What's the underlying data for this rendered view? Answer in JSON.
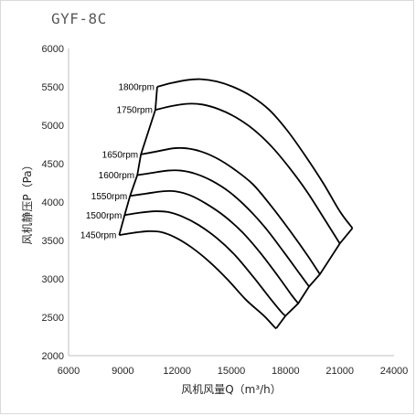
{
  "chart_data": {
    "type": "line",
    "title": "GYF-8C",
    "xlabel": "风机风量Q（m³/h）",
    "ylabel": "风机静压P（Pa）",
    "xlim": [
      6000,
      24000
    ],
    "ylim": [
      2000,
      6000
    ],
    "xticks": [
      6000,
      9000,
      12000,
      15000,
      18000,
      21000,
      24000
    ],
    "yticks": [
      2000,
      2500,
      3000,
      3500,
      4000,
      4500,
      5000,
      5500,
      6000
    ],
    "grid": false,
    "series": [
      {
        "name": "1800rpm",
        "points": [
          [
            10900,
            5500
          ],
          [
            11700,
            5550
          ],
          [
            12600,
            5590
          ],
          [
            13300,
            5600
          ],
          [
            14200,
            5570
          ],
          [
            15100,
            5500
          ],
          [
            16100,
            5380
          ],
          [
            17100,
            5200
          ],
          [
            18100,
            4930
          ],
          [
            19100,
            4600
          ],
          [
            20100,
            4240
          ],
          [
            21000,
            3880
          ],
          [
            21700,
            3660
          ]
        ]
      },
      {
        "name": "1750rpm",
        "points": [
          [
            10800,
            5200
          ],
          [
            11700,
            5250
          ],
          [
            12600,
            5280
          ],
          [
            13400,
            5270
          ],
          [
            14300,
            5210
          ],
          [
            15200,
            5110
          ],
          [
            16200,
            4950
          ],
          [
            17200,
            4730
          ],
          [
            18200,
            4450
          ],
          [
            19200,
            4130
          ],
          [
            20200,
            3760
          ],
          [
            21000,
            3460
          ]
        ]
      },
      {
        "name": "1650rpm",
        "points": [
          [
            10000,
            4620
          ],
          [
            10900,
            4660
          ],
          [
            11800,
            4700
          ],
          [
            12500,
            4700
          ],
          [
            13300,
            4660
          ],
          [
            14200,
            4570
          ],
          [
            15200,
            4420
          ],
          [
            16200,
            4230
          ],
          [
            17200,
            3950
          ],
          [
            18200,
            3640
          ],
          [
            19200,
            3310
          ],
          [
            19900,
            3060
          ]
        ]
      },
      {
        "name": "1600rpm",
        "points": [
          [
            9800,
            4350
          ],
          [
            10600,
            4380
          ],
          [
            11500,
            4410
          ],
          [
            12200,
            4410
          ],
          [
            13000,
            4370
          ],
          [
            13900,
            4280
          ],
          [
            14900,
            4130
          ],
          [
            15900,
            3920
          ],
          [
            16900,
            3660
          ],
          [
            17900,
            3350
          ],
          [
            18800,
            3060
          ],
          [
            19300,
            2900
          ]
        ]
      },
      {
        "name": "1550rpm",
        "points": [
          [
            9400,
            4080
          ],
          [
            10300,
            4110
          ],
          [
            11200,
            4140
          ],
          [
            11900,
            4140
          ],
          [
            12700,
            4090
          ],
          [
            13600,
            3980
          ],
          [
            14600,
            3820
          ],
          [
            15600,
            3610
          ],
          [
            16600,
            3340
          ],
          [
            17600,
            3030
          ],
          [
            18300,
            2800
          ],
          [
            18700,
            2680
          ]
        ]
      },
      {
        "name": "1500rpm",
        "points": [
          [
            9100,
            3830
          ],
          [
            9900,
            3860
          ],
          [
            10800,
            3880
          ],
          [
            11500,
            3870
          ],
          [
            12300,
            3810
          ],
          [
            13200,
            3700
          ],
          [
            14200,
            3530
          ],
          [
            15200,
            3310
          ],
          [
            16200,
            3030
          ],
          [
            17100,
            2760
          ],
          [
            17800,
            2560
          ],
          [
            18000,
            2520
          ]
        ]
      },
      {
        "name": "1450rpm",
        "points": [
          [
            8800,
            3570
          ],
          [
            9600,
            3600
          ],
          [
            10400,
            3620
          ],
          [
            11100,
            3610
          ],
          [
            11900,
            3540
          ],
          [
            12800,
            3410
          ],
          [
            13800,
            3220
          ],
          [
            14800,
            2990
          ],
          [
            15800,
            2730
          ],
          [
            16800,
            2520
          ],
          [
            17400,
            2370
          ],
          [
            17500,
            2360
          ]
        ]
      }
    ],
    "left_envelope": [
      [
        8800,
        3570
      ],
      [
        9100,
        3830
      ],
      [
        9400,
        4080
      ],
      [
        9800,
        4350
      ],
      [
        10000,
        4620
      ],
      [
        10800,
        5200
      ],
      [
        10900,
        5500
      ]
    ],
    "right_envelope": [
      [
        17500,
        2360
      ],
      [
        18000,
        2520
      ],
      [
        18700,
        2680
      ],
      [
        19300,
        2900
      ],
      [
        19900,
        3060
      ],
      [
        21000,
        3460
      ],
      [
        21700,
        3660
      ]
    ]
  },
  "colors": {
    "curve": "#000000",
    "axis": "#bfbfbf",
    "text": "#262626",
    "title": "#595959"
  }
}
